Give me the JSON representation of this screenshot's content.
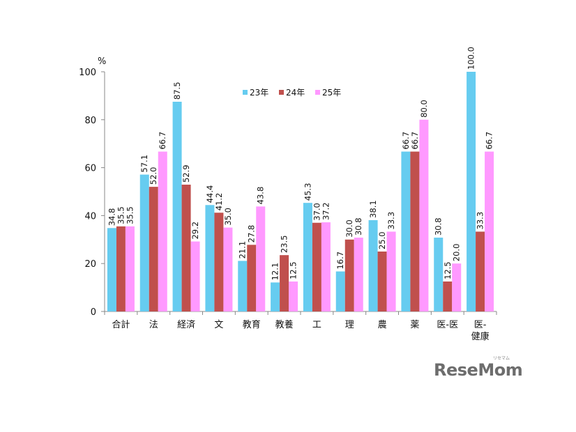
{
  "chart_data": {
    "type": "bar",
    "unit_label": "%",
    "categories": [
      "合計",
      "法",
      "経済",
      "文",
      "教育",
      "教養",
      "工",
      "理",
      "農",
      "薬",
      "医-医",
      "医-健康"
    ],
    "category_lines": [
      [
        "合計"
      ],
      [
        "法"
      ],
      [
        "経済"
      ],
      [
        "文"
      ],
      [
        "教育"
      ],
      [
        "教養"
      ],
      [
        "工"
      ],
      [
        "理"
      ],
      [
        "農"
      ],
      [
        "薬"
      ],
      [
        "医-医"
      ],
      [
        "医-",
        "健康"
      ]
    ],
    "series": [
      {
        "name": "23年",
        "color": "#66ccf0",
        "values": [
          34.8,
          57.1,
          87.5,
          44.4,
          21.1,
          12.1,
          45.3,
          16.7,
          38.1,
          66.7,
          30.8,
          100.0
        ]
      },
      {
        "name": "24年",
        "color": "#c0504d",
        "values": [
          35.5,
          52.0,
          52.9,
          41.2,
          27.8,
          23.5,
          37.0,
          30.0,
          25.0,
          66.7,
          12.5,
          33.3
        ]
      },
      {
        "name": "25年",
        "color": "#ff99ff",
        "values": [
          35.5,
          66.7,
          29.2,
          35.0,
          43.8,
          12.5,
          37.2,
          30.8,
          33.3,
          80.0,
          20.0,
          66.7
        ]
      }
    ],
    "ylim": [
      0,
      100
    ],
    "yticks": [
      0,
      20,
      40,
      60,
      80,
      100
    ],
    "legend": "top-center",
    "grid": false
  },
  "watermark": {
    "text": "ReseMom",
    "sub": "リセマム"
  }
}
